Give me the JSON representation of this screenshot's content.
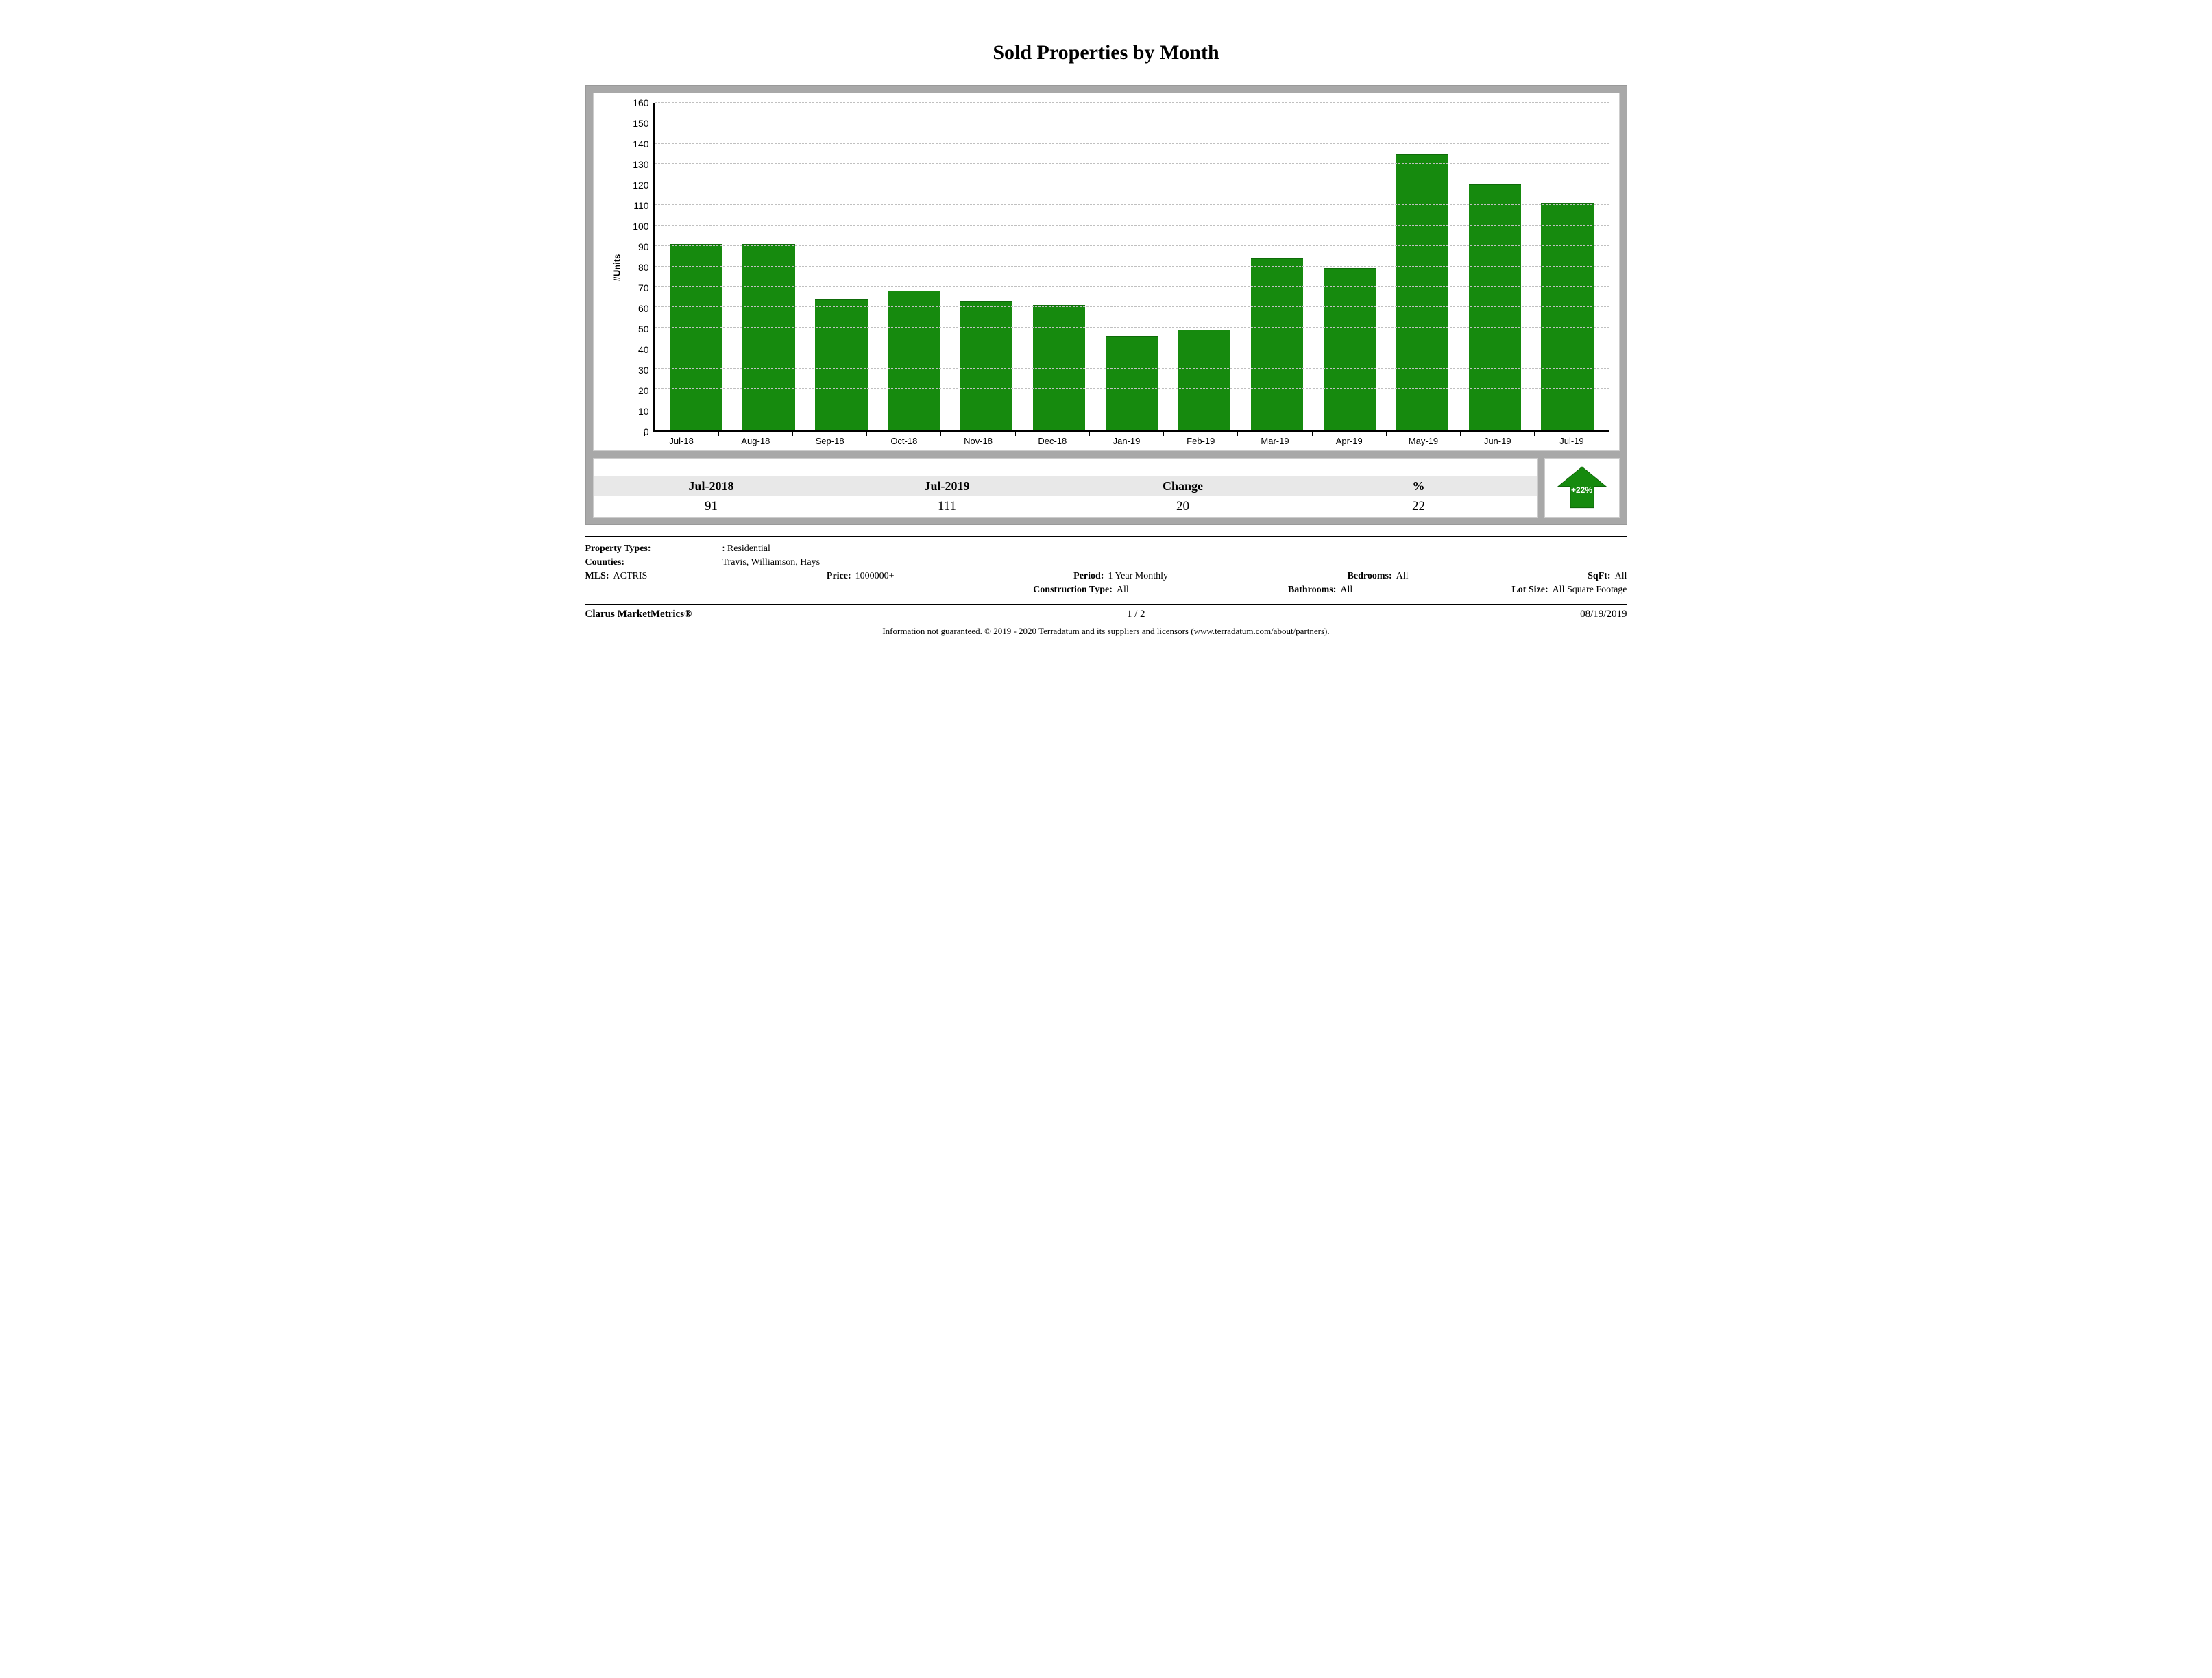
{
  "title": "Sold Properties by Month",
  "chart": {
    "type": "bar",
    "ylabel": "#Units",
    "ymax": 160,
    "ystep": 10,
    "categories": [
      "Jul-18",
      "Aug-18",
      "Sep-18",
      "Oct-18",
      "Nov-18",
      "Dec-18",
      "Jan-19",
      "Feb-19",
      "Mar-19",
      "Apr-19",
      "May-19",
      "Jun-19",
      "Jul-19"
    ],
    "values": [
      91,
      91,
      64,
      68,
      63,
      61,
      46,
      49,
      84,
      79,
      135,
      120,
      111
    ],
    "bar_color": "#168a0e",
    "grid_color": "#c0c0c0",
    "background_color": "#ffffff",
    "axis_color": "#000000",
    "outer_bg": "#a8a8a8"
  },
  "summary": {
    "headers": [
      "Jul-2018",
      "Jul-2019",
      "Change",
      "%"
    ],
    "values": [
      "91",
      "111",
      "20",
      "22"
    ],
    "arrow_label": "+22%",
    "arrow_color": "#168a0e"
  },
  "meta": {
    "property_types_label": "Property Types:",
    "property_types": ": Residential",
    "counties_label": "Counties:",
    "counties": "Travis, Williamson, Hays",
    "mls_label": "MLS:",
    "mls": "ACTRIS",
    "price_label": "Price:",
    "price": "1000000+",
    "period_label": "Period:",
    "period": "1 Year Monthly",
    "bedrooms_label": "Bedrooms:",
    "bedrooms": "All",
    "sqft_label": "SqFt:",
    "sqft": "All",
    "construction_label": "Construction Type:",
    "construction": "All",
    "bathrooms_label": "Bathrooms:",
    "bathrooms": "All",
    "lotsize_label": "Lot Size:",
    "lotsize": "All Square Footage"
  },
  "footer": {
    "left": "Clarus MarketMetrics®",
    "mid": "1 / 2",
    "right": "08/19/2019"
  },
  "disclaimer": "Information not guaranteed. © 2019 - 2020 Terradatum and its suppliers and licensors (www.terradatum.com/about/partners)."
}
